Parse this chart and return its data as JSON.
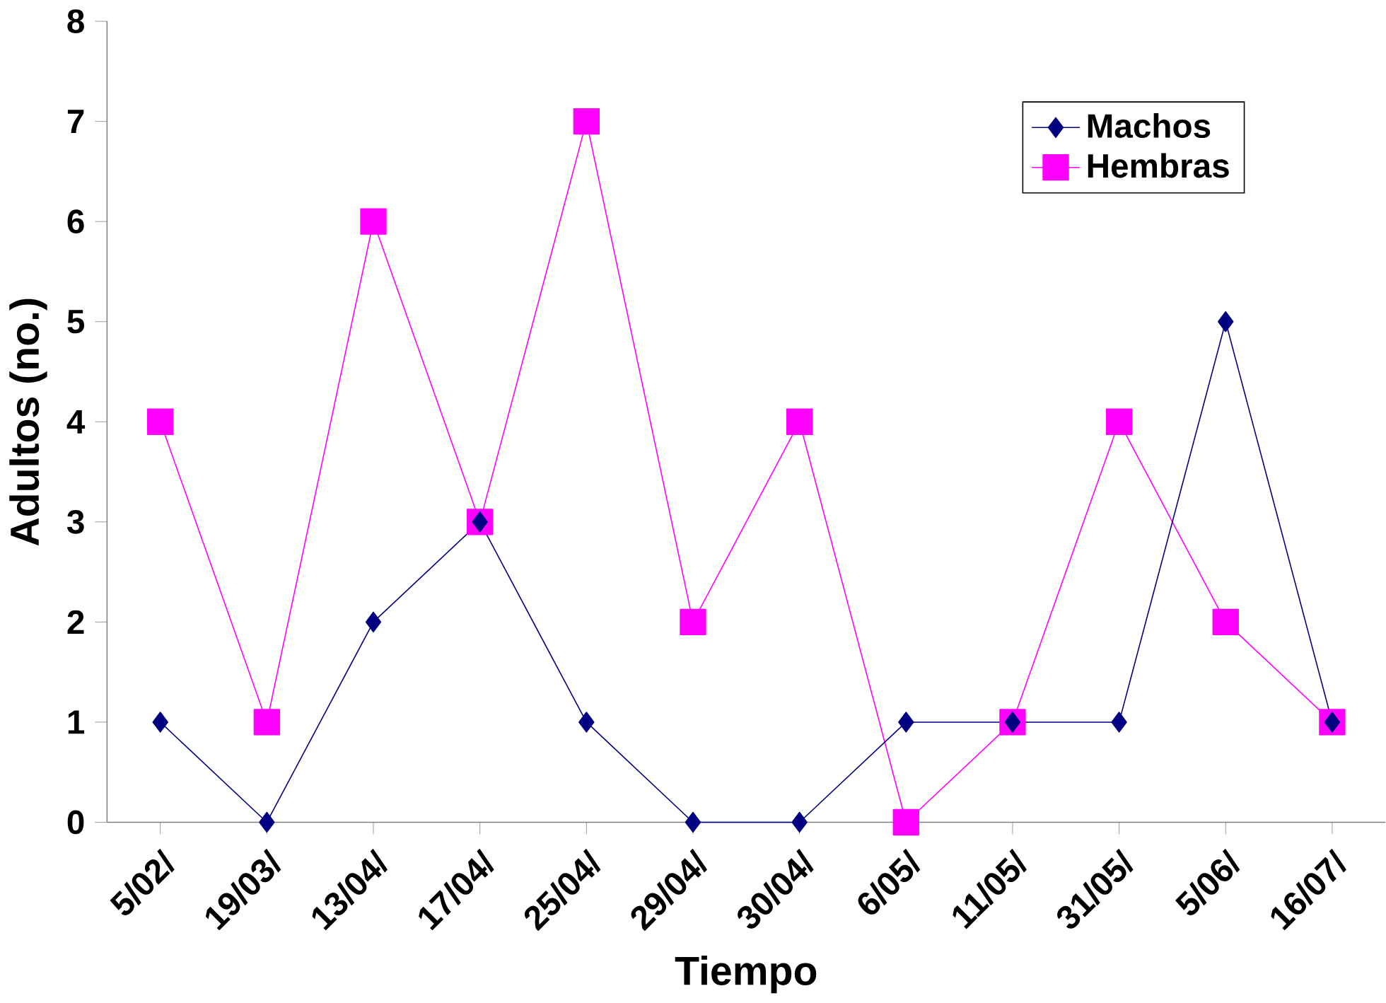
{
  "chart_data": {
    "type": "line",
    "xlabel": "Tiempo",
    "ylabel": "Adultos (no.)",
    "categories": [
      "5/02/",
      "19/03/",
      "13/04/",
      "17/04/",
      "25/04/",
      "29/04/",
      "30/04/",
      "6/05/",
      "11/05/",
      "31/05/",
      "5/06/",
      "16/07/"
    ],
    "series": [
      {
        "name": "Machos",
        "color": "#000080",
        "marker": "diamond",
        "values": [
          1,
          0,
          2,
          3,
          1,
          0,
          0,
          1,
          1,
          1,
          5,
          1
        ]
      },
      {
        "name": "Hembras",
        "color": "#ff00ff",
        "marker": "square",
        "values": [
          4,
          1,
          6,
          3,
          7,
          2,
          4,
          0,
          1,
          4,
          2,
          1
        ]
      }
    ],
    "ylim": [
      0,
      8
    ],
    "yticks": [
      0,
      1,
      2,
      3,
      4,
      5,
      6,
      7,
      8
    ],
    "legend": "top right",
    "line_style": "solid"
  }
}
